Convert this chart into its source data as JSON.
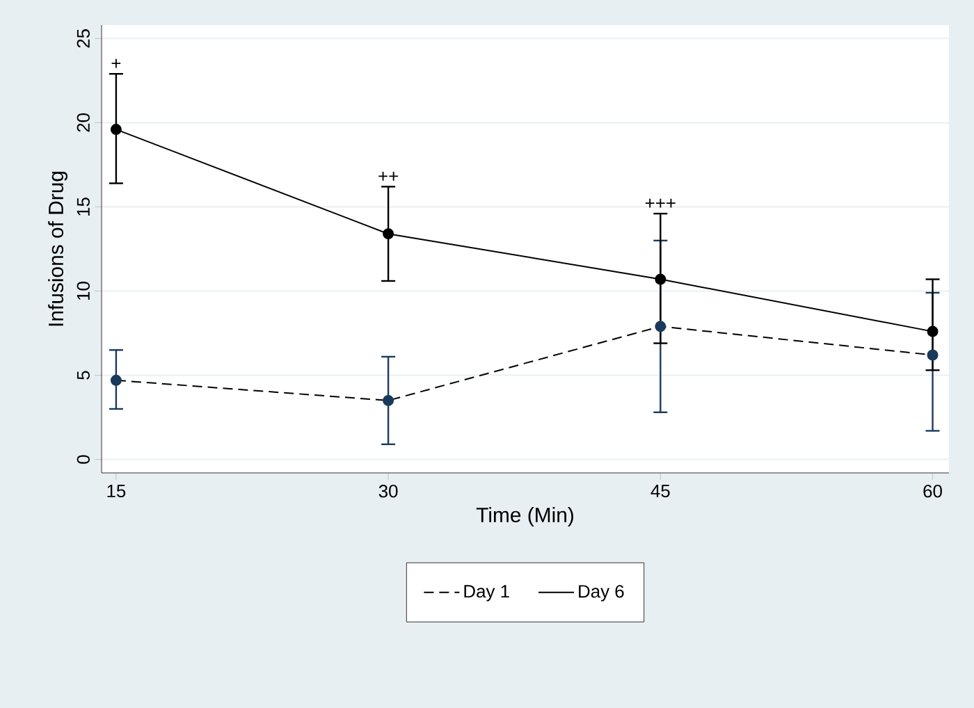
{
  "chart_data": {
    "type": "line",
    "xlabel": "Time (Min)",
    "ylabel": "Infusions of Drug",
    "x": [
      15,
      30,
      45,
      60
    ],
    "xlim": [
      14.2,
      60.9
    ],
    "xticks": [
      15,
      30,
      45,
      60
    ],
    "ylim": [
      -0.8,
      25.8
    ],
    "yticks": [
      0,
      5,
      10,
      15,
      20,
      25
    ],
    "series": [
      {
        "name": "Day 1",
        "color": "#1a3a5c",
        "line_style": "dashed",
        "values": [
          4.7,
          3.5,
          7.9,
          6.2
        ],
        "errors": [
          [
            3.0,
            6.5
          ],
          [
            0.9,
            6.1
          ],
          [
            2.8,
            13.0
          ],
          [
            1.7,
            9.9
          ]
        ]
      },
      {
        "name": "Day 6",
        "color": "#000000",
        "line_style": "solid",
        "values": [
          19.6,
          13.4,
          10.7,
          7.6
        ],
        "errors": [
          [
            16.4,
            22.9
          ],
          [
            10.6,
            16.2
          ],
          [
            6.9,
            14.6
          ],
          [
            5.3,
            10.7
          ]
        ]
      }
    ],
    "annotations": [
      {
        "text": "+",
        "x": 15,
        "y": 22.9
      },
      {
        "text": "++",
        "x": 30,
        "y": 16.2
      },
      {
        "text": "+++",
        "x": 45,
        "y": 14.6
      }
    ],
    "marker": "circle",
    "grid": "y",
    "legend": "bottom"
  }
}
